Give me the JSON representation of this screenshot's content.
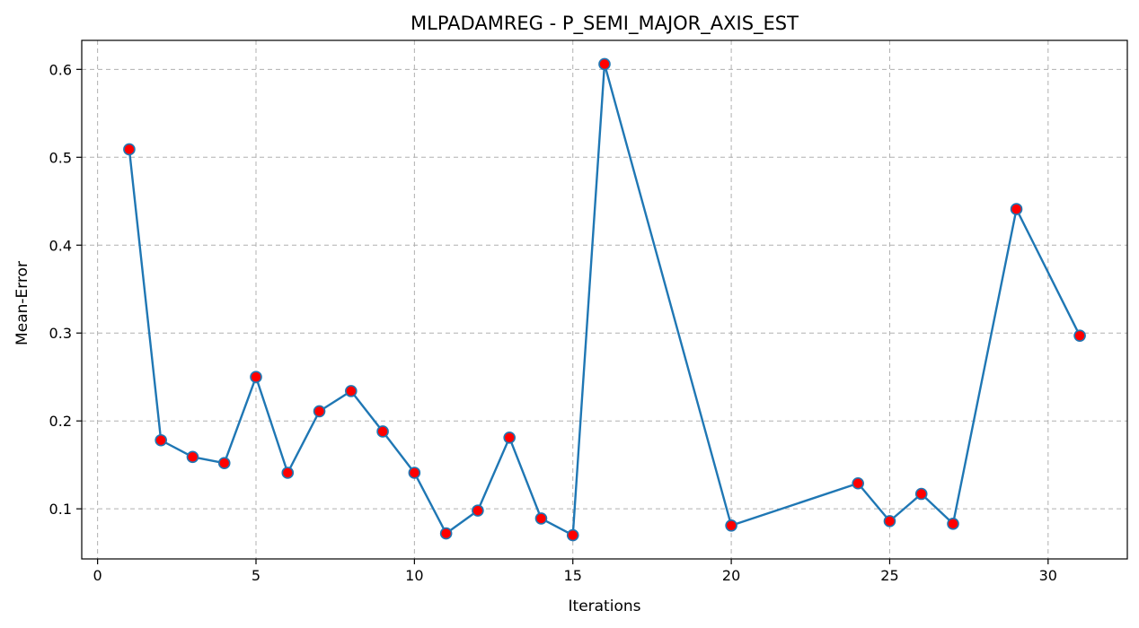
{
  "chart_data": {
    "type": "line",
    "title": "MLPADAMREG - P_SEMI_MAJOR_AXIS_EST",
    "xlabel": "Iterations",
    "ylabel": "Mean-Error",
    "xlim": [
      -0.5,
      32.5
    ],
    "ylim": [
      0.043,
      0.633
    ],
    "xticks": [
      0,
      5,
      10,
      15,
      20,
      25,
      30
    ],
    "yticks": [
      0.1,
      0.2,
      0.3,
      0.4,
      0.5,
      0.6
    ],
    "ytick_labels": [
      "0.1",
      "0.2",
      "0.3",
      "0.4",
      "0.5",
      "0.6"
    ],
    "grid": true,
    "colors": {
      "line": "#1f77b4",
      "marker_fill": "#ff0000",
      "marker_edge": "#1f77b4",
      "grid": "#b0b0b0"
    },
    "series": [
      {
        "x": [
          1,
          2,
          3,
          4,
          5,
          6,
          7,
          8,
          9,
          10,
          11,
          12,
          13,
          14,
          15,
          16,
          20,
          24,
          25,
          26,
          27,
          29,
          31
        ],
        "values": [
          0.509,
          0.178,
          0.159,
          0.152,
          0.25,
          0.141,
          0.211,
          0.234,
          0.188,
          0.141,
          0.072,
          0.098,
          0.181,
          0.089,
          0.07,
          0.606,
          0.081,
          0.129,
          0.086,
          0.117,
          0.083,
          0.441,
          0.297
        ]
      }
    ]
  }
}
